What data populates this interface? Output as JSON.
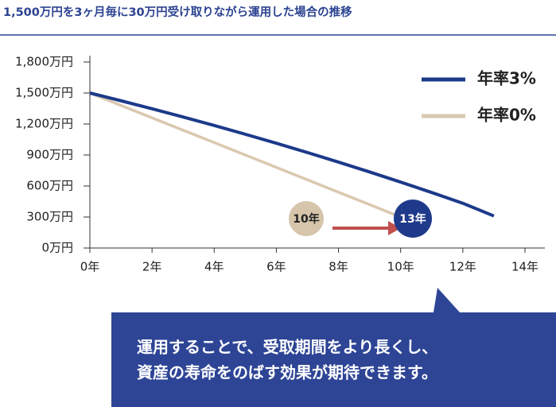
{
  "chart_data": {
    "type": "line",
    "title": "1,500万円を3ヶ月毎に30万円受け取りながら運用した場合の推移",
    "series": [
      {
        "name": "年率3%",
        "color": "#1c3a8a",
        "x": [
          0,
          1,
          2,
          3,
          4,
          5,
          6,
          7,
          8,
          9,
          10,
          11,
          12,
          13
        ],
        "values": [
          1500,
          1425,
          1348,
          1268,
          1186,
          1101,
          1014,
          924,
          831,
          736,
          638,
          537,
          433,
          310
        ]
      },
      {
        "name": "年率0%",
        "color": "#d9c9b0",
        "x": [
          0,
          10
        ],
        "values": [
          1500,
          300
        ]
      }
    ],
    "xlim": [
      0,
      14
    ],
    "xticks": [
      {
        "value": 0,
        "label": "0年"
      },
      {
        "value": 2,
        "label": "2年"
      },
      {
        "value": 4,
        "label": "4年"
      },
      {
        "value": 6,
        "label": "6年"
      },
      {
        "value": 8,
        "label": "8年"
      },
      {
        "value": 10,
        "label": "10年"
      },
      {
        "value": 12,
        "label": "12年"
      },
      {
        "value": 14,
        "label": "14年"
      }
    ],
    "ylim": [
      0,
      1800
    ],
    "yticks": [
      {
        "value": 0,
        "label": "0万円"
      },
      {
        "value": 300,
        "label": "300万円"
      },
      {
        "value": 600,
        "label": "600万円"
      },
      {
        "value": 900,
        "label": "900万円"
      },
      {
        "value": 1200,
        "label": "1,200万円"
      },
      {
        "value": 1500,
        "label": "1,500万円"
      },
      {
        "value": 1800,
        "label": "1,800万円"
      }
    ],
    "legend": "upper right",
    "annotations": [
      {
        "text": "10年",
        "color": "#d6c5ab"
      },
      {
        "text": "13年",
        "color": "#1f3a8a"
      }
    ],
    "callout": [
      "運用することで、受取期間をより長くし、",
      "資産の寿命をのばす効果が期待できます。"
    ]
  }
}
